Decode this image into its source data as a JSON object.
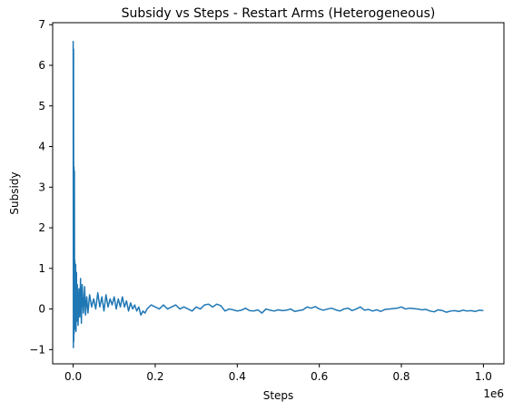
{
  "chart_data": {
    "type": "line",
    "title": "Subsidy vs Steps - Restart Arms (Heterogeneous)",
    "xlabel": "Steps",
    "ylabel": "Subsidy",
    "x_offset_label": "1e6",
    "xlim": [
      -0.05,
      1.05
    ],
    "ylim": [
      -1.35,
      7.05
    ],
    "x_ticks": [
      0.0,
      0.2,
      0.4,
      0.6,
      0.8,
      1.0
    ],
    "x_tick_labels": [
      "0.0",
      "0.2",
      "0.4",
      "0.6",
      "0.8",
      "1.0"
    ],
    "y_ticks": [
      -1,
      0,
      1,
      2,
      3,
      4,
      5,
      6,
      7
    ],
    "y_tick_labels": [
      "−1",
      "0",
      "1",
      "2",
      "3",
      "4",
      "5",
      "6",
      "7"
    ],
    "grid": false,
    "legend": "none",
    "series": [
      {
        "color": "#1f77b4",
        "x": [
          0.0,
          0.0005,
          0.001,
          0.0015,
          0.002,
          0.0025,
          0.003,
          0.0035,
          0.004,
          0.005,
          0.006,
          0.007,
          0.008,
          0.009,
          0.01,
          0.012,
          0.014,
          0.016,
          0.018,
          0.02,
          0.022,
          0.025,
          0.028,
          0.03,
          0.033,
          0.036,
          0.04,
          0.045,
          0.05,
          0.055,
          0.06,
          0.065,
          0.07,
          0.075,
          0.08,
          0.085,
          0.09,
          0.095,
          0.1,
          0.105,
          0.11,
          0.115,
          0.12,
          0.125,
          0.13,
          0.135,
          0.14,
          0.145,
          0.15,
          0.155,
          0.16,
          0.165,
          0.17,
          0.175,
          0.18,
          0.19,
          0.2,
          0.21,
          0.22,
          0.23,
          0.24,
          0.25,
          0.26,
          0.27,
          0.28,
          0.29,
          0.3,
          0.31,
          0.32,
          0.33,
          0.34,
          0.35,
          0.36,
          0.37,
          0.38,
          0.39,
          0.4,
          0.41,
          0.42,
          0.43,
          0.44,
          0.45,
          0.46,
          0.47,
          0.48,
          0.49,
          0.5,
          0.51,
          0.52,
          0.53,
          0.54,
          0.55,
          0.56,
          0.57,
          0.58,
          0.59,
          0.6,
          0.61,
          0.62,
          0.63,
          0.64,
          0.65,
          0.66,
          0.67,
          0.68,
          0.69,
          0.7,
          0.71,
          0.72,
          0.73,
          0.74,
          0.75,
          0.76,
          0.77,
          0.78,
          0.79,
          0.8,
          0.81,
          0.82,
          0.83,
          0.84,
          0.85,
          0.86,
          0.87,
          0.88,
          0.89,
          0.9,
          0.91,
          0.92,
          0.93,
          0.94,
          0.95,
          0.96,
          0.97,
          0.98,
          0.99,
          1.0
        ],
        "y": [
          6.6,
          -0.95,
          6.4,
          -0.8,
          3.5,
          -0.6,
          3.4,
          -0.3,
          1.2,
          -0.5,
          1.1,
          -0.55,
          0.9,
          -0.3,
          0.6,
          -0.4,
          0.5,
          -0.2,
          0.75,
          -0.35,
          0.6,
          -0.1,
          0.55,
          -0.15,
          0.3,
          -0.1,
          0.35,
          0.05,
          0.25,
          0.0,
          0.4,
          0.05,
          0.3,
          -0.05,
          0.35,
          0.05,
          0.25,
          0.1,
          0.3,
          0.0,
          0.25,
          0.05,
          0.3,
          0.05,
          0.2,
          -0.05,
          0.15,
          0.0,
          0.1,
          -0.05,
          0.05,
          -0.15,
          -0.05,
          -0.1,
          0.0,
          0.1,
          0.05,
          0.0,
          0.1,
          0.0,
          0.05,
          0.1,
          0.0,
          0.05,
          0.0,
          -0.05,
          0.05,
          0.0,
          0.1,
          0.12,
          0.05,
          0.12,
          0.08,
          -0.05,
          0.0,
          -0.02,
          -0.05,
          -0.03,
          0.02,
          -0.04,
          -0.05,
          -0.02,
          -0.1,
          0.0,
          -0.03,
          -0.05,
          -0.02,
          -0.04,
          -0.03,
          0.0,
          -0.06,
          -0.04,
          -0.02,
          0.05,
          0.02,
          0.06,
          0.0,
          -0.03,
          0.0,
          0.02,
          -0.02,
          -0.05,
          0.0,
          0.02,
          -0.04,
          0.0,
          0.05,
          -0.03,
          -0.01,
          -0.05,
          -0.02,
          -0.06,
          -0.01,
          0.0,
          0.01,
          0.02,
          0.05,
          0.0,
          0.02,
          0.01,
          0.0,
          -0.02,
          -0.01,
          -0.05,
          -0.07,
          -0.02,
          -0.04,
          -0.08,
          -0.05,
          -0.04,
          -0.06,
          -0.03,
          -0.05,
          -0.04,
          -0.06,
          -0.03,
          -0.04
        ]
      }
    ]
  }
}
